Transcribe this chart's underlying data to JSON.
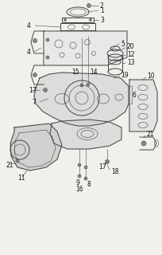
{
  "background_color": "#f0f0ec",
  "line_color": "#444444",
  "text_color": "#111111",
  "font_size": 5.5
}
